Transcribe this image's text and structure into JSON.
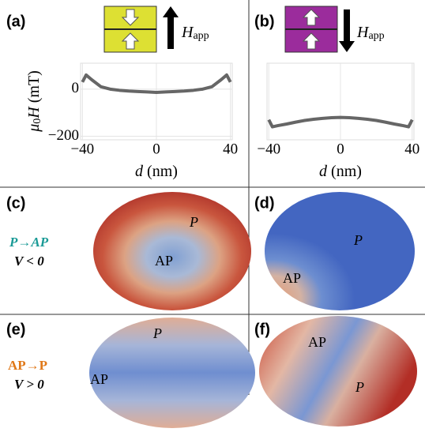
{
  "chart_data": [
    {
      "type": "line",
      "panel": "(a)",
      "ylabel_parts": [
        "μ",
        "0",
        "H",
        " (mT)"
      ],
      "xlabel_parts": [
        "d",
        " (nm)"
      ],
      "field_label": {
        "symbol": "H",
        "subscript": "app"
      },
      "x": [
        -40,
        -38,
        -35,
        -30,
        -25,
        -20,
        -15,
        -10,
        -5,
        0,
        5,
        10,
        15,
        20,
        25,
        30,
        35,
        38,
        40
      ],
      "series": [
        {
          "color": "#666666",
          "values": [
            30,
            60,
            40,
            10,
            0,
            -5,
            -8,
            -10,
            -12,
            -14,
            -12,
            -10,
            -8,
            -5,
            0,
            10,
            40,
            60,
            30
          ]
        }
      ],
      "xlim": [
        -41,
        41
      ],
      "ylim": [
        -215,
        110
      ],
      "xticks": [
        {
          "value": -40,
          "label": "−40"
        },
        0,
        40
      ],
      "yticks": [
        0,
        {
          "value": -200,
          "label": "−200"
        }
      ],
      "grid": true
    },
    {
      "type": "line",
      "panel": "(b)",
      "xlabel_parts": [
        "d",
        " (nm)"
      ],
      "field_label": {
        "symbol": "H",
        "subscript": "app"
      },
      "x": [
        -40,
        -38,
        -35,
        -30,
        -25,
        -20,
        -15,
        -10,
        -5,
        0,
        5,
        10,
        15,
        20,
        25,
        30,
        35,
        38,
        40
      ],
      "series": [
        {
          "color": "#666666",
          "values": [
            -130,
            -160,
            -155,
            -148,
            -140,
            -133,
            -128,
            -124,
            -121,
            -120,
            -121,
            -124,
            -128,
            -133,
            -140,
            -148,
            -155,
            -160,
            -130
          ]
        }
      ],
      "xlim": [
        -41,
        41
      ],
      "ylim": [
        -215,
        110
      ],
      "xticks": [
        {
          "value": -40,
          "label": "−40"
        },
        0,
        40
      ],
      "grid": true
    }
  ],
  "panels": [
    {
      "label": "(c)",
      "texts": [
        "P",
        "AP"
      ]
    },
    {
      "label": "(d)",
      "texts": [
        "P",
        "AP"
      ]
    },
    {
      "label": "(e)",
      "texts": [
        "P",
        "AP"
      ]
    },
    {
      "label": "(f)",
      "texts": [
        "AP",
        "P"
      ]
    }
  ],
  "side_labels": {
    "row1": {
      "transition": "P→AP",
      "bias": "V < 0"
    },
    "row2": {
      "transition": "AP→P",
      "bias": "V > 0"
    }
  }
}
